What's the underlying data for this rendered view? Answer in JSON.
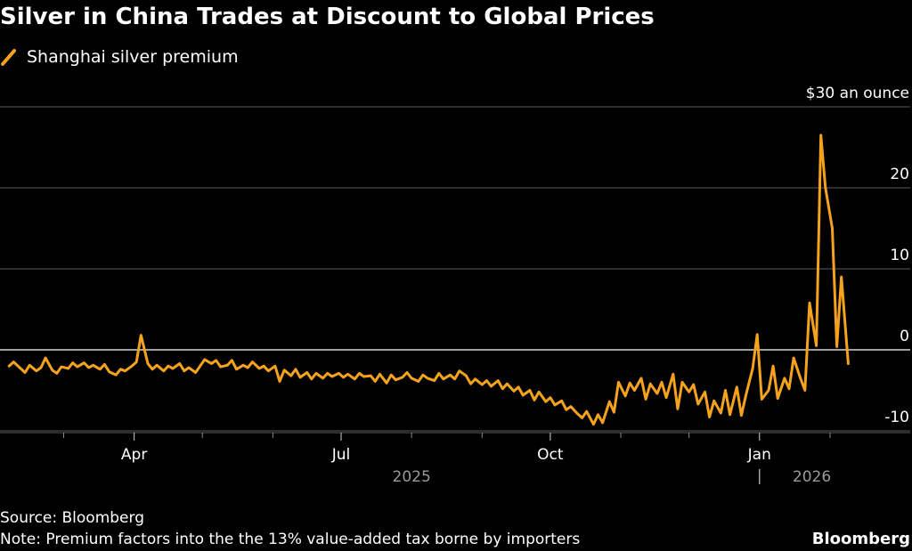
{
  "chart_data": {
    "type": "line",
    "title": "Silver in China Trades at Discount to Global Prices",
    "series": [
      {
        "name": "Shanghai silver premium",
        "color": "#f5a21c",
        "points": [
          [
            "2025-02-05",
            -2.0
          ],
          [
            "2025-02-07",
            -1.5
          ],
          [
            "2025-02-10",
            -2.3
          ],
          [
            "2025-02-12",
            -2.8
          ],
          [
            "2025-02-14",
            -1.9
          ],
          [
            "2025-02-17",
            -2.6
          ],
          [
            "2025-02-19",
            -2.2
          ],
          [
            "2025-02-21",
            -1.0
          ],
          [
            "2025-02-24",
            -2.5
          ],
          [
            "2025-02-26",
            -2.9
          ],
          [
            "2025-02-28",
            -2.1
          ],
          [
            "2025-03-03",
            -2.3
          ],
          [
            "2025-03-05",
            -1.6
          ],
          [
            "2025-03-07",
            -2.1
          ],
          [
            "2025-03-10",
            -1.6
          ],
          [
            "2025-03-12",
            -2.2
          ],
          [
            "2025-03-14",
            -1.9
          ],
          [
            "2025-03-17",
            -2.4
          ],
          [
            "2025-03-19",
            -1.8
          ],
          [
            "2025-03-21",
            -2.7
          ],
          [
            "2025-03-24",
            -3.1
          ],
          [
            "2025-03-26",
            -2.4
          ],
          [
            "2025-03-28",
            -2.6
          ],
          [
            "2025-03-31",
            -2.0
          ],
          [
            "2025-04-02",
            -1.5
          ],
          [
            "2025-04-04",
            1.8
          ],
          [
            "2025-04-07",
            -1.7
          ],
          [
            "2025-04-09",
            -2.4
          ],
          [
            "2025-04-11",
            -1.9
          ],
          [
            "2025-04-14",
            -2.6
          ],
          [
            "2025-04-16",
            -2.0
          ],
          [
            "2025-04-18",
            -2.3
          ],
          [
            "2025-04-21",
            -1.7
          ],
          [
            "2025-04-23",
            -2.6
          ],
          [
            "2025-04-25",
            -2.2
          ],
          [
            "2025-04-28",
            -2.8
          ],
          [
            "2025-04-30",
            -2.0
          ],
          [
            "2025-05-02",
            -1.2
          ],
          [
            "2025-05-05",
            -1.7
          ],
          [
            "2025-05-07",
            -1.3
          ],
          [
            "2025-05-09",
            -2.1
          ],
          [
            "2025-05-12",
            -1.9
          ],
          [
            "2025-05-14",
            -1.3
          ],
          [
            "2025-05-16",
            -2.4
          ],
          [
            "2025-05-19",
            -1.9
          ],
          [
            "2025-05-21",
            -2.2
          ],
          [
            "2025-05-23",
            -1.5
          ],
          [
            "2025-05-26",
            -2.3
          ],
          [
            "2025-05-28",
            -2.0
          ],
          [
            "2025-05-30",
            -2.6
          ],
          [
            "2025-06-02",
            -2.0
          ],
          [
            "2025-06-04",
            -3.9
          ],
          [
            "2025-06-06",
            -2.5
          ],
          [
            "2025-06-09",
            -3.2
          ],
          [
            "2025-06-11",
            -2.4
          ],
          [
            "2025-06-13",
            -3.4
          ],
          [
            "2025-06-16",
            -2.8
          ],
          [
            "2025-06-18",
            -3.6
          ],
          [
            "2025-06-20",
            -2.9
          ],
          [
            "2025-06-23",
            -3.5
          ],
          [
            "2025-06-25",
            -2.9
          ],
          [
            "2025-06-27",
            -3.3
          ],
          [
            "2025-06-30",
            -2.9
          ],
          [
            "2025-07-02",
            -3.4
          ],
          [
            "2025-07-04",
            -3.0
          ],
          [
            "2025-07-07",
            -3.6
          ],
          [
            "2025-07-09",
            -2.9
          ],
          [
            "2025-07-11",
            -3.3
          ],
          [
            "2025-07-14",
            -3.2
          ],
          [
            "2025-07-16",
            -3.9
          ],
          [
            "2025-07-18",
            -3.0
          ],
          [
            "2025-07-21",
            -4.1
          ],
          [
            "2025-07-23",
            -3.1
          ],
          [
            "2025-07-25",
            -3.7
          ],
          [
            "2025-07-28",
            -3.4
          ],
          [
            "2025-07-30",
            -2.8
          ],
          [
            "2025-08-01",
            -3.5
          ],
          [
            "2025-08-04",
            -3.9
          ],
          [
            "2025-08-06",
            -3.1
          ],
          [
            "2025-08-08",
            -3.5
          ],
          [
            "2025-08-11",
            -3.8
          ],
          [
            "2025-08-13",
            -2.9
          ],
          [
            "2025-08-15",
            -3.6
          ],
          [
            "2025-08-18",
            -3.1
          ],
          [
            "2025-08-20",
            -3.6
          ],
          [
            "2025-08-22",
            -2.6
          ],
          [
            "2025-08-25",
            -3.2
          ],
          [
            "2025-08-27",
            -4.2
          ],
          [
            "2025-08-29",
            -3.6
          ],
          [
            "2025-09-01",
            -4.3
          ],
          [
            "2025-09-03",
            -3.8
          ],
          [
            "2025-09-05",
            -4.5
          ],
          [
            "2025-09-08",
            -3.8
          ],
          [
            "2025-09-10",
            -4.8
          ],
          [
            "2025-09-12",
            -4.2
          ],
          [
            "2025-09-15",
            -5.1
          ],
          [
            "2025-09-17",
            -4.6
          ],
          [
            "2025-09-19",
            -5.6
          ],
          [
            "2025-09-22",
            -5.0
          ],
          [
            "2025-09-24",
            -6.2
          ],
          [
            "2025-09-26",
            -5.2
          ],
          [
            "2025-09-29",
            -6.4
          ],
          [
            "2025-10-01",
            -5.9
          ],
          [
            "2025-10-03",
            -6.8
          ],
          [
            "2025-10-06",
            -6.3
          ],
          [
            "2025-10-08",
            -7.4
          ],
          [
            "2025-10-10",
            -7.0
          ],
          [
            "2025-10-13",
            -7.9
          ],
          [
            "2025-10-15",
            -8.4
          ],
          [
            "2025-10-17",
            -7.6
          ],
          [
            "2025-10-20",
            -9.2
          ],
          [
            "2025-10-22",
            -8.0
          ],
          [
            "2025-10-24",
            -9.0
          ],
          [
            "2025-10-27",
            -6.4
          ],
          [
            "2025-10-29",
            -7.7
          ],
          [
            "2025-10-31",
            -4.0
          ],
          [
            "2025-11-03",
            -5.7
          ],
          [
            "2025-11-05",
            -4.1
          ],
          [
            "2025-11-07",
            -5.0
          ],
          [
            "2025-11-10",
            -3.5
          ],
          [
            "2025-11-12",
            -6.1
          ],
          [
            "2025-11-14",
            -4.2
          ],
          [
            "2025-11-17",
            -5.4
          ],
          [
            "2025-11-19",
            -4.0
          ],
          [
            "2025-11-21",
            -5.9
          ],
          [
            "2025-11-24",
            -3.0
          ],
          [
            "2025-11-26",
            -7.3
          ],
          [
            "2025-11-28",
            -4.0
          ],
          [
            "2025-12-01",
            -5.2
          ],
          [
            "2025-12-03",
            -4.3
          ],
          [
            "2025-12-05",
            -6.7
          ],
          [
            "2025-12-08",
            -5.2
          ],
          [
            "2025-12-10",
            -8.3
          ],
          [
            "2025-12-12",
            -6.3
          ],
          [
            "2025-12-15",
            -7.8
          ],
          [
            "2025-12-17",
            -5.0
          ],
          [
            "2025-12-19",
            -8.0
          ],
          [
            "2025-12-22",
            -4.6
          ],
          [
            "2025-12-24",
            -8.1
          ],
          [
            "2025-12-26",
            -5.6
          ],
          [
            "2025-12-29",
            -2.3
          ],
          [
            "2025-12-31",
            1.9
          ],
          [
            "2026-01-02",
            -6.1
          ],
          [
            "2026-01-05",
            -5.0
          ],
          [
            "2026-01-07",
            -2.0
          ],
          [
            "2026-01-09",
            -6.0
          ],
          [
            "2026-01-12",
            -3.5
          ],
          [
            "2026-01-14",
            -4.8
          ],
          [
            "2026-01-16",
            -1.0
          ],
          [
            "2026-01-19",
            -3.5
          ],
          [
            "2026-01-21",
            -5.0
          ],
          [
            "2026-01-23",
            5.8
          ],
          [
            "2026-01-26",
            0.5
          ],
          [
            "2026-01-28",
            26.5
          ],
          [
            "2026-01-30",
            20.0
          ],
          [
            "2026-02-02",
            15.0
          ],
          [
            "2026-02-04",
            0.4
          ],
          [
            "2026-02-06",
            9.0
          ],
          [
            "2026-02-09",
            -1.7
          ]
        ]
      }
    ],
    "y_axis": {
      "unit_label": "$30 an ounce",
      "min": -10,
      "max": 30,
      "ticks": [
        -10,
        0,
        10,
        20
      ],
      "side": "right",
      "gridlines": true
    },
    "x_axis": {
      "min": "2025-02-01",
      "max": "2026-02-21",
      "tick_labels": [
        {
          "date": "2025-04-01",
          "label": "Apr"
        },
        {
          "date": "2025-07-01",
          "label": "Jul"
        },
        {
          "date": "2025-10-01",
          "label": "Oct"
        },
        {
          "date": "2026-01-01",
          "label": "Jan"
        }
      ],
      "minor_tick_dates": [
        "2025-03-01",
        "2025-05-01",
        "2025-06-01",
        "2025-08-01",
        "2025-09-01",
        "2025-11-01",
        "2025-12-01",
        "2026-02-01"
      ],
      "year_labels": [
        {
          "date": "2025-08-01",
          "label": "2025"
        },
        {
          "date": "2026-01-24",
          "label": "2026"
        }
      ],
      "year_divider_date": "2026-01-01"
    }
  },
  "footer": {
    "source": "Source: Bloomberg",
    "note": "Note: Premium factors into the the 13% value-added tax borne by importers",
    "brand": "Bloomberg"
  }
}
